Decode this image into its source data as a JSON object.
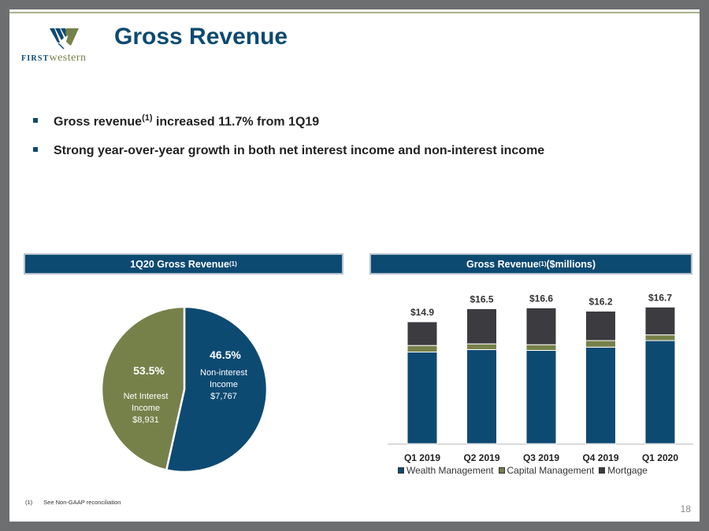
{
  "header": {
    "logo_text_first": "FIRST",
    "logo_text_second": "western",
    "title": "Gross Revenue"
  },
  "bullets": [
    {
      "text": "Gross revenue",
      "sup": "(1)",
      "text_after": " increased 11.7% from 1Q19"
    },
    {
      "text": "Strong year-over-year growth in both net interest income and non-interest income"
    }
  ],
  "pie_panel": {
    "title": "1Q20 Gross Revenue",
    "title_sup": "(1)"
  },
  "bar_panel": {
    "title": "Gross Revenue",
    "title_sup": "(1)",
    "title_after": " ($millions)"
  },
  "colors": {
    "navy": "#0d4a72",
    "olive": "#76814a",
    "charcoal": "#3c3b40",
    "background": "#6d6e70"
  },
  "chart_data": [
    {
      "type": "pie",
      "title": "1Q20 Gross Revenue(1)",
      "slices": [
        {
          "label": "Net Interest Income",
          "value": 8931,
          "value_label": "$8,931",
          "percent": 53.5,
          "percent_label": "53.5%",
          "color": "#0d4a72"
        },
        {
          "label": "Non-interest Income",
          "value": 7767,
          "value_label": "$7,767",
          "percent": 46.5,
          "percent_label": "46.5%",
          "color": "#76814a"
        }
      ]
    },
    {
      "type": "bar",
      "stacked": true,
      "title": "Gross Revenue(1) ($millions)",
      "categories": [
        "Q1 2019",
        "Q2 2019",
        "Q3 2019",
        "Q4 2019",
        "Q1 2020"
      ],
      "series": [
        {
          "name": "Wealth Management",
          "color": "#0d4a72",
          "values": [
            11.2,
            11.5,
            11.4,
            11.8,
            12.6
          ]
        },
        {
          "name": "Capital Management",
          "color": "#76814a",
          "values": [
            0.8,
            0.7,
            0.7,
            0.8,
            0.7
          ]
        },
        {
          "name": "Mortgage",
          "color": "#3c3b40",
          "values": [
            2.9,
            4.3,
            4.5,
            3.6,
            3.4
          ]
        }
      ],
      "totals": [
        14.9,
        16.5,
        16.6,
        16.2,
        16.7
      ],
      "total_labels": [
        "$14.9",
        "$16.5",
        "$16.6",
        "$16.2",
        "$16.7"
      ],
      "ylim": [
        0,
        20
      ],
      "legend_position": "bottom",
      "grid": false
    }
  ],
  "footnote": {
    "num": "(1)",
    "text": "See Non-GAAP reconciliation"
  },
  "page_number": "18"
}
